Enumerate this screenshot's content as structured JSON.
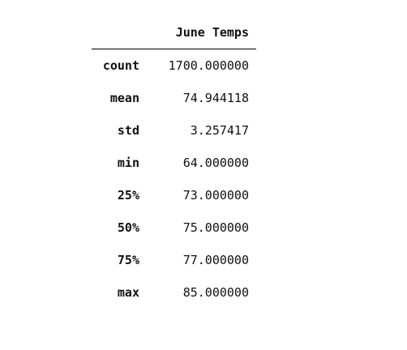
{
  "table": {
    "columns": [
      "June Temps"
    ],
    "rows": [
      {
        "label": "count",
        "value": "1700.000000"
      },
      {
        "label": "mean",
        "value": "74.944118"
      },
      {
        "label": "std",
        "value": "3.257417"
      },
      {
        "label": "min",
        "value": "64.000000"
      },
      {
        "label": "25%",
        "value": "73.000000"
      },
      {
        "label": "50%",
        "value": "75.000000"
      },
      {
        "label": "75%",
        "value": "77.000000"
      },
      {
        "label": "max",
        "value": "85.000000"
      }
    ]
  }
}
